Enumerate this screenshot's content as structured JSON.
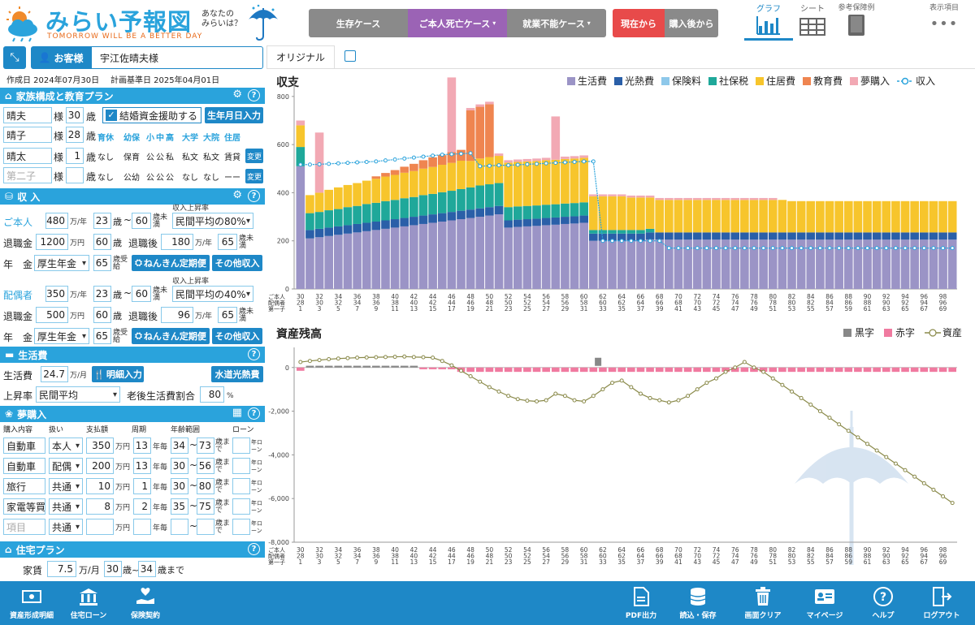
{
  "app": {
    "logo_title": "みらい予報図",
    "logo_tagline": "TOMORROW WILL BE A BETTER DAY",
    "logo_sub": "あなたの\nみらいは？"
  },
  "cases": {
    "survival": "生存ケース",
    "death": "ご本人死亡ケース",
    "disability": "就業不能ケース",
    "from_now": "現在から",
    "from_purchase": "購入後から"
  },
  "view_tabs": {
    "graph": "グラフ",
    "sheet": "シート",
    "reference": "参考保障例",
    "display": "表示項目"
  },
  "customer": {
    "label": "お客様",
    "name": "宇江佐晴夫様",
    "created": "作成日 2024年07月30日",
    "base_date": "計画基準日 2025年04月01日"
  },
  "family": {
    "title": "家族構成と教育プラン",
    "members": [
      {
        "name": "晴夫",
        "suffix": "様",
        "age": "30",
        "unit": "歳"
      },
      {
        "name": "晴子",
        "suffix": "様",
        "age": "28",
        "unit": "歳"
      },
      {
        "name": "晴太",
        "suffix": "様",
        "age": "1",
        "unit": "歳"
      },
      {
        "name": "第二子",
        "suffix": "様",
        "age": "",
        "unit": "歳"
      }
    ],
    "marriage_support": "結婚資金援助する",
    "birthday_btn": "生年月日入力",
    "edu_headers": [
      "育休",
      "幼保",
      "小",
      "中",
      "高",
      "大学",
      "大院",
      "住居"
    ],
    "edu_row1": [
      "なし",
      "保育",
      "公",
      "公",
      "私",
      "私文",
      "私文",
      "賃貸"
    ],
    "edu_row2": [
      "なし",
      "公幼",
      "公",
      "公",
      "公",
      "なし",
      "なし",
      "ーー"
    ],
    "change": "変更"
  },
  "income": {
    "title": "収 入",
    "note": "収入上昇率",
    "self_label": "ご本人",
    "self_income": "480",
    "unit_year": "万/年",
    "self_from": "23",
    "self_to": "60",
    "age_unit": "歳",
    "under": "歳未満",
    "self_rate": "民間平均の80%",
    "retire_label": "退職金",
    "self_retire": "1200",
    "man": "万円",
    "self_retire_age": "60",
    "after_label": "退職後",
    "self_after": "180",
    "self_after_to": "65",
    "pension_label": "年　金",
    "self_pension": "厚生年金",
    "self_pension_age": "65",
    "receive": "歳受給",
    "nenkin_btn": "ねんきん定期便",
    "other_btn": "その他収入",
    "spouse_label": "配偶者",
    "spouse_income": "350",
    "spouse_from": "23",
    "spouse_to": "60",
    "spouse_rate": "民間平均の40%",
    "spouse_retire": "500",
    "spouse_retire_age": "60",
    "spouse_after": "96",
    "spouse_after_to": "65",
    "spouse_pension": "厚生年金",
    "spouse_pension_age": "65"
  },
  "living": {
    "title": "生活費",
    "label": "生活費",
    "value": "24.7",
    "unit": "万/月",
    "detail_btn": "明細入力",
    "utility_btn": "水道光熱費",
    "rate_label": "上昇率",
    "rate": "民間平均",
    "ratio_label": "老後生活費割合",
    "ratio": "80",
    "pct": "%"
  },
  "dream": {
    "title": "夢購入",
    "headers": [
      "購入内容",
      "扱い",
      "支払額",
      "周期",
      "年齢範囲",
      "ローン"
    ],
    "rows": [
      {
        "item": "自動車",
        "who": "本人",
        "amount": "350",
        "cycle": "13",
        "from": "34",
        "to": "73"
      },
      {
        "item": "自動車",
        "who": "配偶",
        "amount": "200",
        "cycle": "13",
        "from": "30",
        "to": "56"
      },
      {
        "item": "旅行",
        "who": "共通",
        "amount": "10",
        "cycle": "1",
        "from": "30",
        "to": "80"
      },
      {
        "item": "家電等買",
        "who": "共通",
        "amount": "8",
        "cycle": "2",
        "from": "35",
        "to": "75"
      },
      {
        "item": "項目",
        "who": "共通",
        "amount": "",
        "cycle": "",
        "from": "",
        "to": ""
      }
    ],
    "man": "万円",
    "nen": "年毎",
    "made": "歳まで",
    "loan": "年ローン"
  },
  "housing": {
    "title": "住宅プラン",
    "rent_label": "家賃",
    "rent": "7.5",
    "rent_unit": "万/月",
    "from": "30",
    "to": "34",
    "made": "歳まで"
  },
  "tabs": {
    "original": "オリジナル"
  },
  "chart1": {
    "title": "収支",
    "legend": [
      {
        "name": "生活費",
        "color": "#9b94c6"
      },
      {
        "name": "光熱費",
        "color": "#2a5fa8"
      },
      {
        "name": "保険料",
        "color": "#8ec8ea"
      },
      {
        "name": "社保税",
        "color": "#1fa89a"
      },
      {
        "name": "住居費",
        "color": "#f7c52c"
      },
      {
        "name": "教育費",
        "color": "#ef8550"
      },
      {
        "name": "夢購入",
        "color": "#f2a9b4"
      }
    ],
    "income_label": "収入",
    "yticks": [
      "0",
      "200",
      "400",
      "600",
      "800"
    ],
    "row_labels": [
      "ご本人",
      "配偶者",
      "第一子"
    ]
  },
  "chart2": {
    "title": "資産残高",
    "legend_black": "黒字",
    "legend_red": "赤字",
    "legend_asset": "資産",
    "yticks": [
      "0",
      "-2,000",
      "-4,000",
      "-6,000",
      "-8,000"
    ]
  },
  "chart_data": [
    {
      "type": "bar",
      "title": "収支",
      "ylim": [
        0,
        850
      ],
      "x_ages_self": [
        30,
        31,
        32,
        33,
        34,
        35,
        36,
        37,
        38,
        39,
        40,
        41,
        42,
        43,
        44,
        45,
        46,
        47,
        48,
        49,
        50,
        51,
        52,
        53,
        54,
        55,
        56,
        57,
        58,
        59,
        60,
        61,
        62,
        63,
        64,
        65,
        66,
        67,
        68,
        69,
        70,
        71,
        72,
        73,
        74,
        75,
        76,
        77,
        78,
        79,
        80,
        81,
        82,
        83,
        84,
        85,
        86,
        87,
        88,
        89,
        90,
        91,
        92,
        93,
        94,
        95,
        96,
        97,
        98,
        99
      ],
      "tick_labels_self": [
        "30",
        "32",
        "34",
        "36",
        "38",
        "40",
        "42",
        "44",
        "46",
        "48",
        "50",
        "52",
        "54",
        "56",
        "58",
        "60",
        "62",
        "64",
        "66",
        "68",
        "70",
        "72",
        "74",
        "76",
        "78",
        "80",
        "82",
        "84",
        "86",
        "88",
        "90",
        "92",
        "94",
        "96",
        "98"
      ],
      "tick_labels_spouse": [
        "28",
        "30",
        "32",
        "34",
        "36",
        "38",
        "40",
        "42",
        "44",
        "46",
        "48",
        "50",
        "52",
        "54",
        "56",
        "58",
        "60",
        "62",
        "64",
        "66",
        "68",
        "70",
        "72",
        "74",
        "76",
        "78",
        "80",
        "82",
        "84",
        "86",
        "88",
        "90",
        "92",
        "94",
        "96"
      ],
      "tick_labels_child": [
        "1",
        "3",
        "5",
        "7",
        "9",
        "11",
        "13",
        "15",
        "17",
        "19",
        "21",
        "23",
        "25",
        "27",
        "29",
        "31",
        "33",
        "35",
        "37",
        "39",
        "41",
        "43",
        "45",
        "47",
        "49",
        "51",
        "53",
        "55",
        "57",
        "59",
        "61",
        "63",
        "65",
        "67",
        "69"
      ],
      "series": [
        {
          "name": "生活費",
          "values": [
            510,
            210,
            215,
            220,
            225,
            230,
            235,
            240,
            245,
            250,
            255,
            260,
            265,
            270,
            275,
            280,
            285,
            290,
            295,
            300,
            305,
            310,
            255,
            258,
            260,
            262,
            265,
            267,
            270,
            272,
            275,
            200,
            200,
            200,
            200,
            200,
            200,
            205,
            205,
            205,
            205,
            205,
            205,
            205,
            205,
            205,
            205,
            205,
            205,
            205,
            205,
            205,
            205,
            205,
            205,
            205,
            205,
            205,
            205,
            205,
            205,
            205,
            205,
            205,
            205,
            205,
            205,
            205,
            205,
            205
          ]
        },
        {
          "name": "光熱費",
          "values": [
            0,
            35,
            35,
            35,
            35,
            35,
            35,
            35,
            35,
            35,
            35,
            35,
            35,
            35,
            35,
            35,
            35,
            35,
            35,
            35,
            35,
            35,
            30,
            30,
            30,
            30,
            30,
            30,
            30,
            30,
            30,
            30,
            30,
            30,
            30,
            30,
            30,
            30,
            30,
            30,
            30,
            30,
            30,
            30,
            30,
            30,
            30,
            30,
            30,
            30,
            30,
            30,
            30,
            30,
            30,
            30,
            30,
            30,
            30,
            30,
            30,
            30,
            30,
            30,
            30,
            30,
            30,
            30,
            30,
            30
          ]
        },
        {
          "name": "保険料",
          "values": [
            0,
            0,
            0,
            0,
            0,
            0,
            0,
            0,
            0,
            0,
            0,
            0,
            0,
            0,
            0,
            0,
            0,
            0,
            0,
            0,
            0,
            0,
            0,
            0,
            0,
            0,
            0,
            0,
            0,
            0,
            0,
            0,
            0,
            0,
            0,
            0,
            0,
            0,
            0,
            0,
            0,
            0,
            0,
            0,
            0,
            0,
            0,
            0,
            0,
            0,
            0,
            0,
            0,
            0,
            0,
            0,
            0,
            0,
            0,
            0,
            0,
            0,
            0,
            0,
            0,
            0,
            0,
            0,
            0,
            0
          ]
        },
        {
          "name": "社保税",
          "values": [
            80,
            70,
            70,
            72,
            72,
            75,
            75,
            78,
            78,
            80,
            80,
            82,
            82,
            85,
            85,
            87,
            88,
            90,
            92,
            95,
            95,
            95,
            55,
            55,
            55,
            55,
            55,
            55,
            55,
            55,
            55,
            15,
            15,
            15,
            15,
            15,
            15,
            15,
            0,
            0,
            0,
            0,
            0,
            0,
            0,
            0,
            0,
            0,
            0,
            0,
            0,
            0,
            0,
            0,
            0,
            0,
            0,
            0,
            0,
            0,
            0,
            0,
            0,
            0,
            0,
            0,
            0,
            0,
            0,
            0
          ]
        },
        {
          "name": "住居費",
          "values": [
            90,
            75,
            80,
            85,
            90,
            92,
            95,
            97,
            100,
            102,
            104,
            106,
            108,
            110,
            112,
            114,
            116,
            118,
            110,
            112,
            113,
            113,
            185,
            185,
            185,
            185,
            185,
            185,
            185,
            185,
            185,
            140,
            140,
            140,
            140,
            135,
            135,
            130,
            135,
            135,
            135,
            135,
            135,
            135,
            135,
            135,
            135,
            135,
            135,
            135,
            135,
            135,
            130,
            130,
            130,
            130,
            130,
            130,
            130,
            130,
            130,
            130,
            130,
            130,
            130,
            130,
            130,
            130,
            130,
            130
          ]
        },
        {
          "name": "教育費",
          "values": [
            0,
            0,
            0,
            0,
            0,
            0,
            0,
            0,
            10,
            15,
            20,
            25,
            30,
            35,
            40,
            40,
            45,
            45,
            210,
            215,
            220,
            0,
            0,
            0,
            0,
            0,
            0,
            0,
            0,
            0,
            0,
            0,
            0,
            0,
            0,
            0,
            0,
            0,
            0,
            0,
            0,
            0,
            0,
            0,
            0,
            0,
            0,
            0,
            0,
            0,
            0,
            0,
            0,
            0,
            0,
            0,
            0,
            0,
            0,
            0,
            0,
            0,
            0,
            0,
            0,
            0,
            0,
            0,
            0,
            0
          ]
        },
        {
          "name": "夢購入",
          "values": [
            20,
            0,
            250,
            0,
            0,
            0,
            0,
            0,
            0,
            0,
            0,
            0,
            0,
            0,
            0,
            0,
            310,
            0,
            10,
            10,
            10,
            10,
            10,
            10,
            10,
            10,
            10,
            180,
            10,
            10,
            10,
            8,
            8,
            8,
            8,
            8,
            8,
            8,
            8,
            8,
            8,
            8,
            8,
            8,
            8,
            8,
            8,
            8,
            8,
            8,
            8,
            0,
            0,
            0,
            0,
            0,
            0,
            0,
            0,
            0,
            0,
            0,
            0,
            0,
            0,
            0,
            0,
            0,
            0,
            0
          ]
        }
      ],
      "income": [
        517,
        517,
        518,
        520,
        522,
        524,
        526,
        528,
        530,
        534,
        538,
        542,
        546,
        550,
        554,
        558,
        560,
        562,
        564,
        510,
        512,
        514,
        514,
        516,
        518,
        520,
        522,
        524,
        526,
        528,
        530,
        530,
        200,
        200,
        200,
        200,
        200,
        200,
        200,
        170,
        170,
        170,
        170,
        170,
        170,
        170,
        170,
        170,
        170,
        170,
        170,
        170,
        170,
        170,
        170,
        170,
        170,
        170,
        170,
        170,
        170,
        170,
        170,
        170,
        170,
        170,
        170,
        170,
        170,
        170
      ]
    },
    {
      "type": "line",
      "title": "資産残高",
      "ylim": [
        -8000,
        500
      ],
      "asset": [
        250,
        300,
        340,
        380,
        410,
        430,
        450,
        460,
        470,
        480,
        490,
        500,
        480,
        470,
        450,
        300,
        100,
        -150,
        -400,
        -650,
        -900,
        -1100,
        -1300,
        -1450,
        -1520,
        -1550,
        -1500,
        -1200,
        -1300,
        -1500,
        -1550,
        -1300,
        -1000,
        -700,
        -600,
        -900,
        -1200,
        -1400,
        -1500,
        -1600,
        -1500,
        -1300,
        -1000,
        -700,
        -500,
        -200,
        0,
        250,
        0,
        -200,
        -500,
        -800,
        -1100,
        -1400,
        -1700,
        -2000,
        -2300,
        -2600,
        -2900,
        -3200,
        -3500,
        -3800,
        -4100,
        -4400,
        -4700,
        -5000,
        -5300,
        -5600,
        -5900,
        -6200
      ],
      "balance": [
        -150,
        80,
        80,
        80,
        80,
        80,
        80,
        80,
        80,
        80,
        80,
        80,
        80,
        -80,
        -80,
        -80,
        -80,
        -200,
        -200,
        -200,
        -200,
        -200,
        -200,
        -200,
        -200,
        -200,
        -200,
        -200,
        -200,
        -200,
        -200,
        -200,
        -200,
        -200,
        -200,
        -200,
        -200,
        -200,
        -200,
        -200,
        -200,
        -200,
        -200,
        -200,
        -200,
        -200,
        -200,
        -200,
        -200,
        -200,
        -200,
        -200,
        -200,
        -200,
        -200,
        -200,
        -200,
        -200,
        -200,
        -200,
        -200,
        -200,
        -200,
        -200,
        -200,
        -200,
        -200,
        -200,
        -200,
        -200
      ]
    }
  ],
  "footer": [
    {
      "label": "資産形成明細",
      "icon": "money-icon"
    },
    {
      "label": "住宅ローン",
      "icon": "bank-icon"
    },
    {
      "label": "保険契約",
      "icon": "hand-heart-icon"
    },
    {
      "label": "PDF出力",
      "icon": "pdf-icon"
    },
    {
      "label": "読込・保存",
      "icon": "database-icon"
    },
    {
      "label": "画面クリア",
      "icon": "trash-icon"
    },
    {
      "label": "マイページ",
      "icon": "id-card-icon"
    },
    {
      "label": "ヘルプ",
      "icon": "help-icon"
    },
    {
      "label": "ログアウト",
      "icon": "logout-icon"
    }
  ]
}
